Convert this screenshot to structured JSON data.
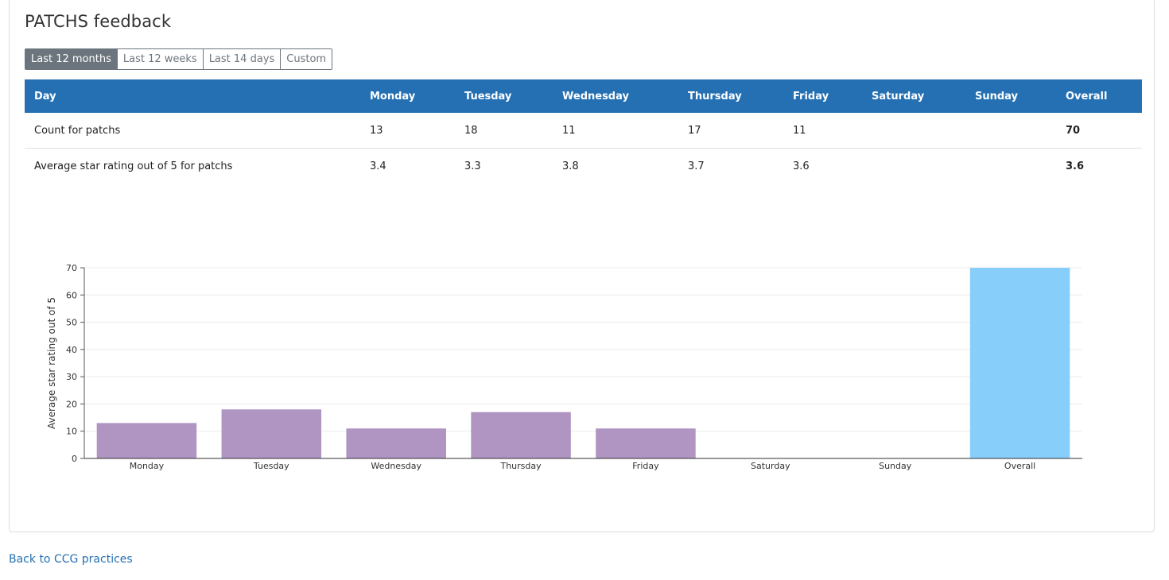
{
  "page_title": "PATCHS feedback",
  "range_buttons": [
    {
      "label": "Last 12 months",
      "active": true
    },
    {
      "label": "Last 12 weeks",
      "active": false
    },
    {
      "label": "Last 14 days",
      "active": false
    },
    {
      "label": "Custom",
      "active": false
    }
  ],
  "table": {
    "headers": [
      "Day",
      "Monday",
      "Tuesday",
      "Wednesday",
      "Thursday",
      "Friday",
      "Saturday",
      "Sunday",
      "Overall"
    ],
    "rows": [
      {
        "label": "Count for patchs",
        "values": [
          "13",
          "18",
          "11",
          "17",
          "11",
          "",
          "",
          "70"
        ]
      },
      {
        "label": "Average star rating out of 5 for patchs",
        "values": [
          "3.4",
          "3.3",
          "3.8",
          "3.7",
          "3.6",
          "",
          "",
          "3.6"
        ]
      }
    ]
  },
  "chart_data": {
    "type": "bar",
    "categories": [
      "Monday",
      "Tuesday",
      "Wednesday",
      "Thursday",
      "Friday",
      "Saturday",
      "Sunday",
      "Overall"
    ],
    "values": [
      13,
      18,
      11,
      17,
      11,
      0,
      0,
      70
    ],
    "ylabel": "Average star rating out of 5",
    "ylim": [
      0,
      70
    ],
    "yticks": [
      0,
      10,
      20,
      30,
      40,
      50,
      60,
      70
    ],
    "grid": true,
    "bar_colors": {
      "day": "#b094c2",
      "overall": "#87cefa"
    }
  },
  "back_link": "Back to CCG practices"
}
